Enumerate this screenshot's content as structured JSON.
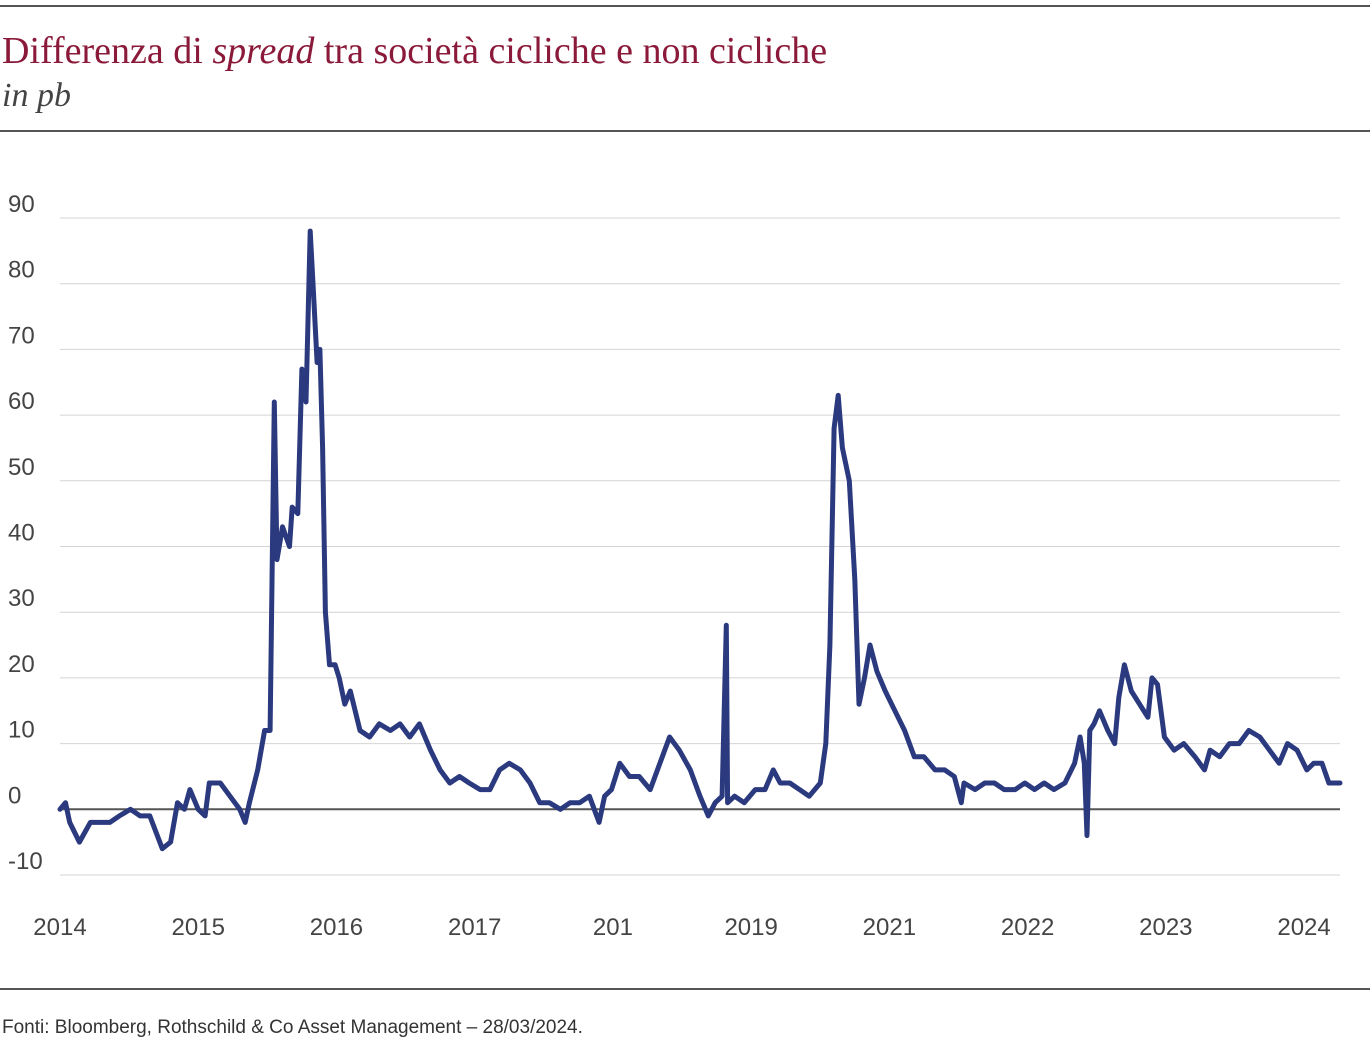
{
  "chart_data": {
    "type": "line",
    "title_parts": [
      "Differenza di ",
      "spread",
      " tra società cicliche e non cicliche"
    ],
    "subtitle": "in pb",
    "source": "Fonti: Bloomberg, Rothschild & Co Asset Management  – 28/03/2024.",
    "x": [
      0,
      0.04,
      0.07,
      0.14,
      0.22,
      0.29,
      0.36,
      0.43,
      0.51,
      0.58,
      0.65,
      0.74,
      0.8,
      0.85,
      0.9,
      0.94,
      1.0,
      1.05,
      1.08,
      1.16,
      1.23,
      1.3,
      1.34,
      1.37,
      1.43,
      1.48,
      1.52,
      1.55,
      1.57,
      1.61,
      1.66,
      1.68,
      1.72,
      1.75,
      1.78,
      1.81,
      1.83,
      1.86,
      1.88,
      1.9,
      1.92,
      1.95,
      1.99,
      2.02,
      2.06,
      2.1,
      2.17,
      2.24,
      2.31,
      2.39,
      2.46,
      2.53,
      2.6,
      2.68,
      2.75,
      2.82,
      2.89,
      2.96,
      3.04,
      3.11,
      3.18,
      3.25,
      3.33,
      3.4,
      3.47,
      3.54,
      3.62,
      3.69,
      3.76,
      3.83,
      3.9,
      3.94,
      3.99,
      4.05,
      4.12,
      4.19,
      4.27,
      4.34,
      4.41,
      4.48,
      4.56,
      4.63,
      4.69,
      4.74,
      4.79,
      4.82,
      4.83,
      4.88,
      4.95,
      5.03,
      5.1,
      5.16,
      5.21,
      5.28,
      5.35,
      5.42,
      5.5,
      5.54,
      5.57,
      5.6,
      5.63,
      5.66,
      5.71,
      5.75,
      5.78,
      5.82,
      5.86,
      5.91,
      5.97,
      6.04,
      6.11,
      6.18,
      6.25,
      6.33,
      6.4,
      6.47,
      6.52,
      6.54,
      6.62,
      6.69,
      6.76,
      6.83,
      6.91,
      6.98,
      7.05,
      7.12,
      7.19,
      7.27,
      7.34,
      7.38,
      7.41,
      7.43,
      7.45,
      7.48,
      7.52,
      7.58,
      7.63,
      7.66,
      7.7,
      7.75,
      7.81,
      7.87,
      7.9,
      7.94,
      7.99,
      8.06,
      8.13,
      8.21,
      8.28,
      8.32,
      8.39,
      8.46,
      8.53,
      8.6,
      8.68,
      8.75,
      8.82,
      8.88,
      8.95,
      9.02,
      9.07,
      9.13,
      9.18,
      9.26
    ],
    "series": [
      {
        "color": "#2b3a7e",
        "values": [
          0,
          1,
          -2,
          -5,
          -2,
          -2,
          -2,
          -1,
          0,
          -1,
          -1,
          -6,
          -5,
          1,
          0,
          3,
          0,
          -1,
          4,
          4,
          2,
          0,
          -2,
          1,
          6,
          12,
          12,
          62,
          38,
          43,
          40,
          46,
          45,
          67,
          62,
          88,
          80,
          68,
          70,
          55,
          30,
          22,
          22,
          20,
          16,
          18,
          12,
          11,
          13,
          12,
          13,
          11,
          13,
          9,
          6,
          4,
          5,
          4,
          3,
          3,
          6,
          7,
          6,
          4,
          1,
          1,
          0,
          1,
          1,
          2,
          -2,
          2,
          3,
          7,
          5,
          5,
          3,
          7,
          11,
          9,
          6,
          2,
          -1,
          1,
          2,
          28,
          1,
          2,
          1,
          3,
          3,
          6,
          4,
          4,
          3,
          2,
          4,
          10,
          25,
          58,
          63,
          55,
          50,
          35,
          16,
          20,
          25,
          21,
          18,
          15,
          12,
          8,
          8,
          6,
          6,
          5,
          1,
          4,
          3,
          4,
          4,
          3,
          3,
          4,
          3,
          4,
          3,
          4,
          7,
          11,
          7,
          -4,
          12,
          13,
          15,
          12,
          10,
          17,
          22,
          18,
          16,
          14,
          20,
          19,
          11,
          9,
          10,
          8,
          6,
          9,
          8,
          10,
          10,
          12,
          11,
          9,
          7,
          10,
          9,
          6,
          7,
          7,
          4,
          4
        ]
      }
    ],
    "xlim": [
      0,
      9.26
    ],
    "xticks": [
      {
        "value": 0,
        "label": "2014"
      },
      {
        "value": 1,
        "label": "2015"
      },
      {
        "value": 2,
        "label": "2016"
      },
      {
        "value": 3,
        "label": "2017"
      },
      {
        "value": 4,
        "label": "201"
      },
      {
        "value": 5,
        "label": "2019"
      },
      {
        "value": 6,
        "label": "2021"
      },
      {
        "value": 7,
        "label": "2022"
      },
      {
        "value": 8,
        "label": "2023"
      },
      {
        "value": 9,
        "label": "2024"
      }
    ],
    "ylim": [
      -10,
      90
    ],
    "yticks": [
      -10,
      0,
      10,
      20,
      30,
      40,
      50,
      60,
      70,
      80,
      90
    ],
    "grid": true
  }
}
